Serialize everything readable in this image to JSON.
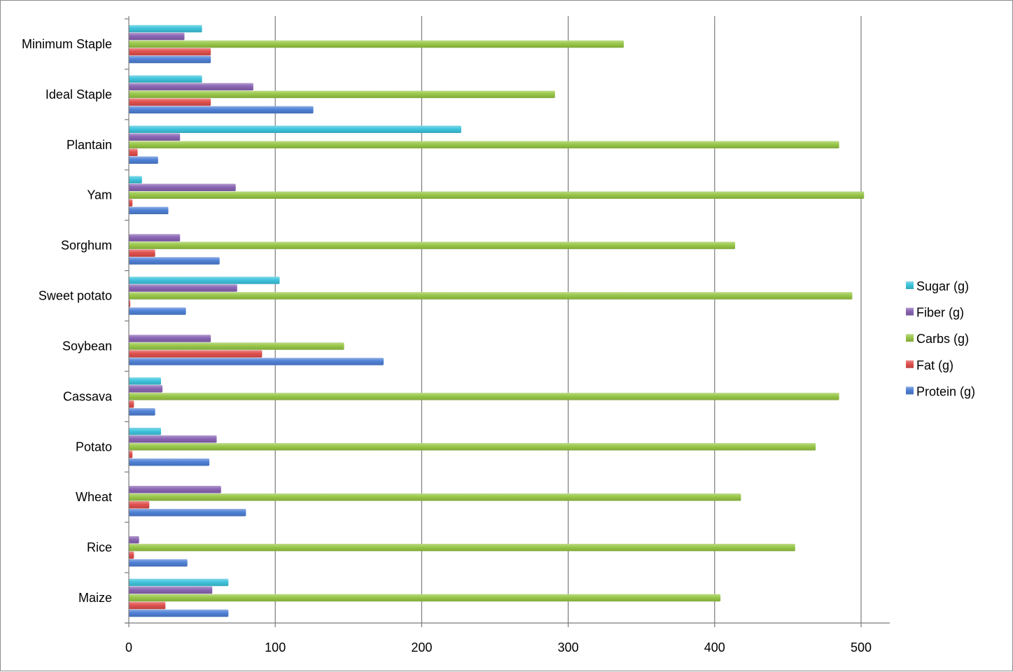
{
  "chart_data": {
    "type": "bar",
    "orientation": "horizontal",
    "title": "",
    "xlabel": "",
    "ylabel": "",
    "xlim": [
      0,
      520
    ],
    "x_ticks": [
      "0",
      "100",
      "200",
      "300",
      "400",
      "500"
    ],
    "grid": "vertical",
    "legend_position": "right",
    "categories": [
      "Maize",
      "Rice",
      "Wheat",
      "Potato",
      "Cassava",
      "Soybean",
      "Sweet potato",
      "Sorghum",
      "Yam",
      "Plantain",
      "Ideal Staple",
      "Minimum Staple"
    ],
    "series": [
      {
        "name": "Protein (g)",
        "color": "#4f81d6",
        "values": [
          68,
          40,
          80,
          55,
          18,
          174,
          39,
          62,
          27,
          20,
          126,
          56
        ]
      },
      {
        "name": "Fat (g)",
        "color": "#e0504e",
        "values": [
          25,
          3.5,
          14,
          2.5,
          3.5,
          91,
          1,
          18,
          2.5,
          6,
          56,
          56
        ]
      },
      {
        "name": "Carbs (g)",
        "color": "#98c748",
        "values": [
          404,
          455,
          418,
          469,
          485,
          147,
          494,
          414,
          502,
          485,
          291,
          338
        ]
      },
      {
        "name": "Fiber (g)",
        "color": "#8a65b4",
        "values": [
          57,
          7,
          63,
          60,
          23,
          56,
          74,
          35,
          73,
          35,
          85,
          38
        ]
      },
      {
        "name": "Sugar (g)",
        "color": "#3fc4dc",
        "values": [
          68,
          0,
          0,
          22,
          22,
          0,
          103,
          0,
          9,
          227,
          50,
          50
        ]
      }
    ]
  }
}
